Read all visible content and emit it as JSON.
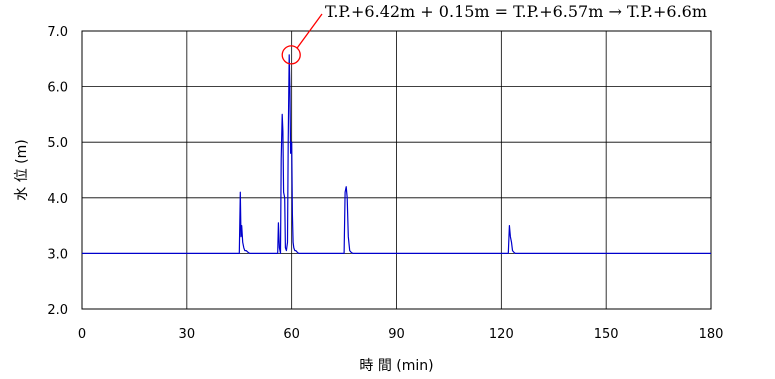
{
  "chart_data": {
    "type": "line",
    "title": "",
    "xlabel": "時 間 (min)",
    "ylabel": "水 位 (m)",
    "xlim": [
      0,
      180
    ],
    "ylim": [
      2.0,
      7.0
    ],
    "xticks": [
      0,
      30,
      60,
      90,
      120,
      150,
      180
    ],
    "yticks": [
      2.0,
      3.0,
      4.0,
      5.0,
      6.0,
      7.0
    ],
    "xtick_labels": [
      "0",
      "30",
      "60",
      "90",
      "120",
      "150",
      "180"
    ],
    "ytick_labels": [
      "2.0",
      "3.0",
      "4.0",
      "5.0",
      "6.0",
      "7.0"
    ],
    "grid": true,
    "line_color": "#0000cc",
    "highlight_color": "#ff0000",
    "series": [
      {
        "x": [
          0,
          45.0,
          45.3,
          45.5,
          45.7,
          46.0,
          46.3,
          46.6,
          47.0,
          47.5,
          48,
          56.0,
          56.2,
          56.5,
          56.8,
          57.0,
          57.3,
          57.5,
          57.7,
          58.0,
          58.2,
          58.5,
          58.8,
          59.0,
          59.3,
          59.5,
          59.7,
          60.0,
          60.2,
          60.4,
          60.6,
          60.9,
          61.2,
          61.6,
          62.0,
          62.5,
          63,
          75.0,
          75.3,
          75.6,
          75.9,
          76.2,
          76.6,
          77.0,
          77.5,
          78,
          122.0,
          122.3,
          122.6,
          122.9,
          123.2,
          123.6,
          124.0,
          124.5,
          125,
          180
        ],
        "y": [
          3.0,
          3.0,
          4.1,
          3.3,
          3.5,
          3.2,
          3.1,
          3.05,
          3.05,
          3.02,
          3.0,
          3.0,
          3.55,
          3.1,
          3.0,
          4.7,
          5.5,
          5.2,
          4.1,
          4.0,
          3.1,
          3.05,
          3.2,
          5.0,
          6.57,
          6.0,
          4.8,
          5.0,
          3.7,
          3.2,
          3.1,
          3.05,
          3.05,
          3.02,
          3.0,
          3.0,
          3.0,
          3.0,
          4.1,
          4.2,
          4.0,
          3.3,
          3.05,
          3.02,
          3.0,
          3.0,
          3.0,
          3.5,
          3.3,
          3.2,
          3.05,
          3.02,
          3.0,
          3.0,
          3.0,
          3.0
        ]
      }
    ],
    "peak": {
      "x": 59.3,
      "y": 6.57
    },
    "annotation": "T.P.+6.42m + 0.15m = T.P.+6.57m → T.P.+6.6m"
  }
}
